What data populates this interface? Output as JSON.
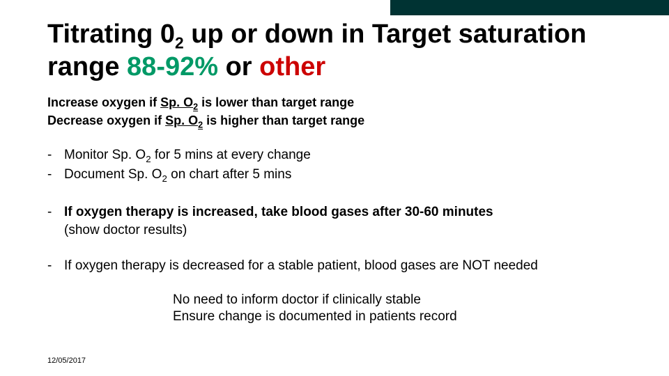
{
  "colors": {
    "header_bar": "#003333",
    "range_green": "#009966",
    "other_red": "#cc0000",
    "text": "#000000",
    "background": "#ffffff"
  },
  "title": {
    "prefix": "Titrating 0",
    "sub": "2",
    "mid": " up or down in Target saturation range ",
    "range": "88-92%",
    "or": " or ",
    "other": "other"
  },
  "instructions": {
    "increase_pre": "Increase oxygen if ",
    "spo2_label": "Sp. O",
    "spo2_sub": "2",
    "increase_post": "  is lower than target range",
    "decrease_pre": "Decrease oxygen if ",
    "decrease_post": " is higher than target range"
  },
  "monitor": {
    "line1_pre": "Monitor Sp. O",
    "line1_sub": "2",
    "line1_post": " for 5 mins at every change",
    "line2_pre": "Document Sp. O",
    "line2_sub": "2",
    "line2_post": " on chart after 5 mins"
  },
  "increased": {
    "text": "If oxygen therapy is increased, take blood gases after 30-60 minutes",
    "paren": "(show doctor results)"
  },
  "decreased": {
    "text": "If oxygen therapy is decreased for a stable patient, blood gases are NOT needed"
  },
  "footer": {
    "line1": "No need to inform doctor if clinically stable",
    "line2": "Ensure change is documented in patients record"
  },
  "date": "12/05/2017"
}
